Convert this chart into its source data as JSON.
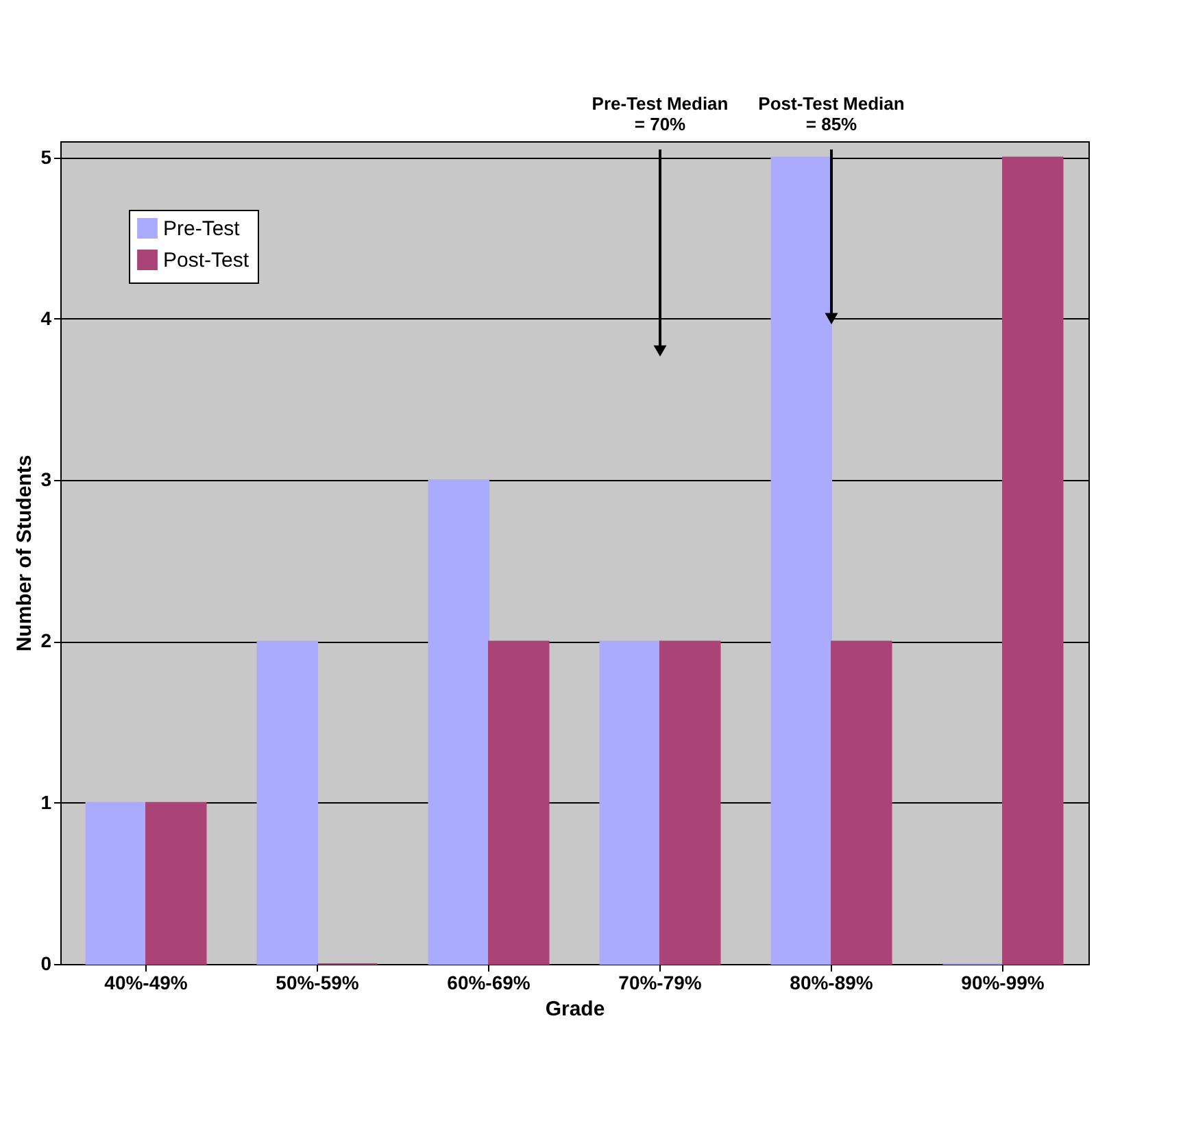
{
  "chart_data": {
    "type": "bar",
    "xlabel": "Grade",
    "ylabel": "Number of Students",
    "categories": [
      "40%-49%",
      "50%-59%",
      "60%-69%",
      "70%-79%",
      "80%-89%",
      "90%-99%"
    ],
    "series": [
      {
        "name": "Pre-Test",
        "color": "#aaaaff",
        "values": [
          1,
          2,
          3,
          2,
          5,
          0
        ]
      },
      {
        "name": "Post-Test",
        "color": "#aa4477",
        "values": [
          1,
          0,
          2,
          2,
          2,
          5
        ]
      }
    ],
    "ylim": [
      0,
      5.1
    ],
    "yticks": [
      0,
      1,
      2,
      3,
      4,
      5
    ],
    "grid": "y",
    "legend": "top left",
    "annotations": [
      {
        "text": "Pre-Test Median\n= 70%",
        "x": "70%-79%",
        "y": 3.8
      },
      {
        "text": "Post-Test Median\n= 85%",
        "x": "80%-89%",
        "y": 4
      }
    ]
  }
}
